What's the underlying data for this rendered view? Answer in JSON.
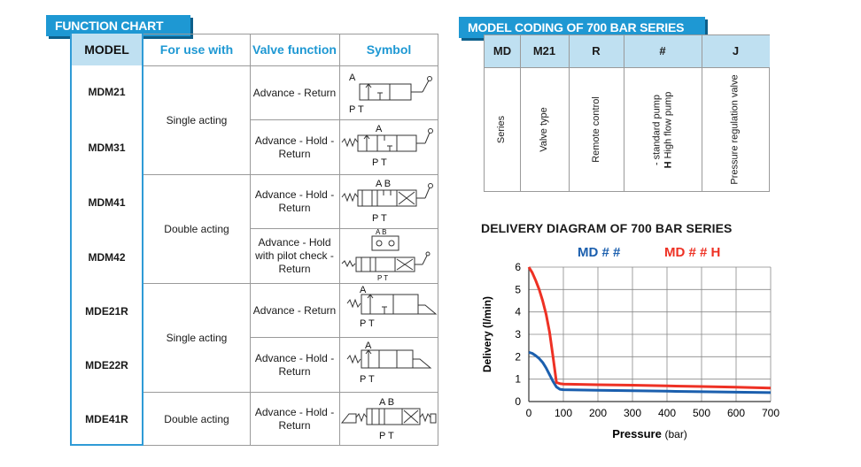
{
  "function_chart": {
    "title": "FUNCTION CHART",
    "headers": {
      "model": "MODEL",
      "use": "For use with",
      "function": "Valve function",
      "symbol": "Symbol"
    },
    "models": [
      "MDM21",
      "MDM31",
      "MDM41",
      "MDM42",
      "MDE21R",
      "MDE22R",
      "MDE41R"
    ],
    "use_groups": [
      "Single acting",
      "Double acting",
      "Single acting",
      "Double acting"
    ],
    "functions": [
      [
        "Advance - Return"
      ],
      [
        "Advance - Hold -",
        "Return"
      ],
      [
        "Advance - Hold -",
        "Return"
      ],
      [
        "Advance - Hold",
        "with pilot check -",
        "Return"
      ],
      [
        "Advance - Return"
      ],
      [
        "Advance - Hold -",
        "Return"
      ],
      [
        "Advance - Hold -",
        "Return"
      ]
    ],
    "symbol_ports": [
      {
        "top": "A",
        "bottom": "P T"
      },
      {
        "top": "A",
        "bottom": "P T"
      },
      {
        "top": "A B",
        "bottom": "P T"
      },
      {
        "top": "A B",
        "bottom": "P T"
      },
      {
        "top": "A",
        "bottom": "P T"
      },
      {
        "top": "A",
        "bottom": "P T"
      },
      {
        "top": "A B",
        "bottom": "P T"
      }
    ]
  },
  "model_coding": {
    "title": "MODEL CODING OF  700 BAR SERIES",
    "codes": [
      "MD",
      "M21",
      "R",
      "#",
      "J"
    ],
    "descriptions": [
      "Series",
      "Valve type",
      "Remote control"
    ],
    "pump_line1": "- standard pump",
    "pump_line2_bold": "H",
    "pump_line2": " High flow pump",
    "regulation": "Pressure regulation valve"
  },
  "delivery_diagram": {
    "title": "DELIVERY DIAGRAM OF  700 BAR SERIES"
  },
  "chart_data": {
    "type": "line",
    "xlabel": "Pressure",
    "xlabel_unit": "(bar)",
    "ylabel": "Delivery (l/min)",
    "xlim": [
      0,
      700
    ],
    "ylim": [
      0,
      6
    ],
    "x_ticks": [
      0,
      100,
      200,
      300,
      400,
      500,
      600,
      700
    ],
    "y_ticks": [
      0,
      1,
      2,
      3,
      4,
      5,
      6
    ],
    "grid": true,
    "series": [
      {
        "name": "MD # #",
        "color": "#1b5fae",
        "x": [
          0,
          10,
          20,
          30,
          40,
          50,
          60,
          70,
          80,
          90,
          100,
          200,
          300,
          400,
          500,
          600,
          700
        ],
        "y": [
          2.2,
          2.15,
          2.05,
          1.92,
          1.75,
          1.5,
          1.2,
          0.9,
          0.65,
          0.55,
          0.53,
          0.5,
          0.48,
          0.46,
          0.44,
          0.42,
          0.4
        ]
      },
      {
        "name": "MD # # H",
        "color": "#ee3124",
        "x": [
          0,
          10,
          20,
          30,
          40,
          50,
          60,
          70,
          80,
          90,
          100,
          200,
          300,
          400,
          500,
          600,
          700
        ],
        "y": [
          6.0,
          5.75,
          5.4,
          5.0,
          4.5,
          3.9,
          3.1,
          2.0,
          0.85,
          0.8,
          0.78,
          0.75,
          0.73,
          0.7,
          0.67,
          0.64,
          0.6
        ]
      }
    ]
  }
}
